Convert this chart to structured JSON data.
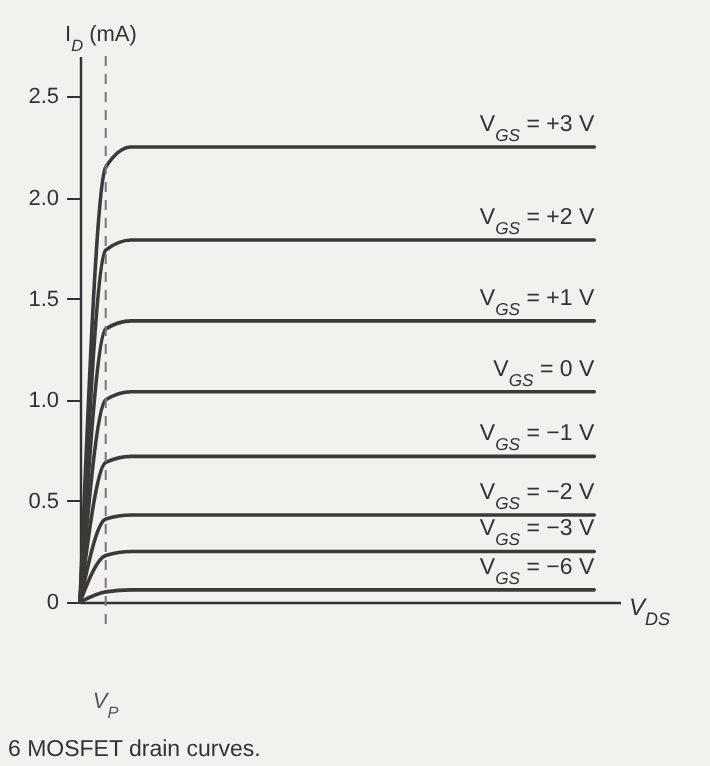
{
  "chart_data": {
    "type": "line",
    "categories": [
      null,
      null,
      null,
      null,
      null,
      null,
      null,
      null,
      null,
      null,
      null,
      null,
      null,
      null,
      null,
      null,
      null,
      null,
      null,
      null,
      null
    ],
    "ylabel": "I$_{D}$ (mA)",
    "xlabel": "V$_{DS}$",
    "ylim": [
      0,
      2.7
    ],
    "yticks": [
      0,
      0.5,
      {
        "value": 1,
        "label": "1.0"
      },
      1.5,
      {
        "value": 2,
        "label": "2.0"
      },
      2.5
    ],
    "tick_labels": "y",
    "series": [
      {
        "name": "V$_{GS}$ = +3 V",
        "color": "#3a3a3a",
        "values": [
          0,
          2.15,
          2.25,
          2.25,
          2.25,
          2.25,
          2.25,
          2.25,
          2.25,
          2.25,
          2.25,
          2.25,
          2.25,
          2.25,
          2.25,
          2.25,
          2.25,
          2.25,
          2.25,
          2.25,
          2.25
        ]
      },
      {
        "name": "V$_{GS}$ = +2 V",
        "color": "#3a3a3a",
        "values": [
          0,
          1.74,
          1.79,
          1.79,
          1.79,
          1.79,
          1.79,
          1.79,
          1.79,
          1.79,
          1.79,
          1.79,
          1.79,
          1.79,
          1.79,
          1.79,
          1.79,
          1.79,
          1.79,
          1.79,
          1.79
        ]
      },
      {
        "name": "V$_{GS}$ = +1 V",
        "color": "#3a3a3a",
        "values": [
          0,
          1.35,
          1.39,
          1.39,
          1.39,
          1.39,
          1.39,
          1.39,
          1.39,
          1.39,
          1.39,
          1.39,
          1.39,
          1.39,
          1.39,
          1.39,
          1.39,
          1.39,
          1.39,
          1.39,
          1.39
        ]
      },
      {
        "name": "V$_{GS}$ = 0 V",
        "color": "#3a3a3a",
        "values": [
          0,
          1.0,
          1.04,
          1.04,
          1.04,
          1.04,
          1.04,
          1.04,
          1.04,
          1.04,
          1.04,
          1.04,
          1.04,
          1.04,
          1.04,
          1.04,
          1.04,
          1.04,
          1.04,
          1.04,
          1.04
        ]
      },
      {
        "name": "V$_{GS}$ = −1 V",
        "color": "#3a3a3a",
        "values": [
          0,
          0.69,
          0.72,
          0.72,
          0.72,
          0.72,
          0.72,
          0.72,
          0.72,
          0.72,
          0.72,
          0.72,
          0.72,
          0.72,
          0.72,
          0.72,
          0.72,
          0.72,
          0.72,
          0.72,
          0.72
        ]
      },
      {
        "name": "V$_{GS}$ = −2 V",
        "color": "#3a3a3a",
        "values": [
          0,
          0.41,
          0.43,
          0.43,
          0.43,
          0.43,
          0.43,
          0.43,
          0.43,
          0.43,
          0.43,
          0.43,
          0.43,
          0.43,
          0.43,
          0.43,
          0.43,
          0.43,
          0.43,
          0.43,
          0.43
        ]
      },
      {
        "name": "V$_{GS}$ = −3 V",
        "color": "#3a3a3a",
        "values": [
          0,
          0.23,
          0.25,
          0.25,
          0.25,
          0.25,
          0.25,
          0.25,
          0.25,
          0.25,
          0.25,
          0.25,
          0.25,
          0.25,
          0.25,
          0.25,
          0.25,
          0.25,
          0.25,
          0.25,
          0.25
        ]
      },
      {
        "name": "V$_{GS}$ = −6 V",
        "color": "#3a3a3a",
        "values": [
          0,
          0.05,
          0.06,
          0.06,
          0.06,
          0.06,
          0.06,
          0.06,
          0.06,
          0.06,
          0.06,
          0.06,
          0.06,
          0.06,
          0.06,
          0.06,
          0.06,
          0.06,
          0.06,
          0.06,
          0.06
        ]
      }
    ],
    "annotations": [
      "V$_{P}$",
      "6 MOSFET drain curves."
    ]
  }
}
